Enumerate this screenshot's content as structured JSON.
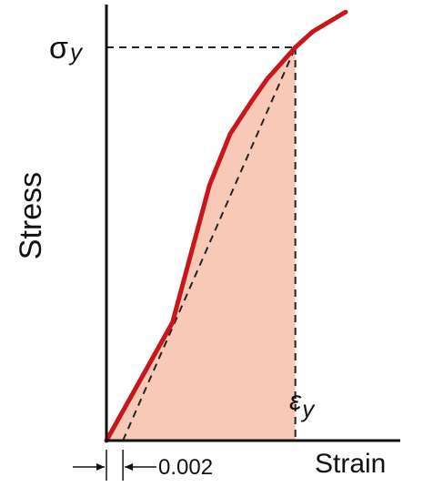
{
  "chart_data": {
    "type": "line",
    "title": "",
    "xlabel": "Strain",
    "ylabel": "Stress",
    "yield_stress_label": "σ",
    "yield_stress_subscript": "y",
    "yield_strain_label": "ε",
    "yield_strain_subscript": "y",
    "offset_label": "0.002",
    "offset_value": 0.002,
    "series": [
      {
        "values": [
          [
            0,
            0
          ],
          [
            0.008,
            0.3
          ],
          [
            0.0125,
            0.65
          ],
          [
            0.015,
            0.78
          ],
          [
            0.0175,
            0.86
          ],
          [
            0.0195,
            0.92
          ],
          [
            0.0229,
            1.0
          ],
          [
            0.025,
            1.04
          ],
          [
            0.029,
            1.09
          ]
        ]
      }
    ],
    "yield_point": [
      0.0229,
      1.0
    ],
    "offset_line": [
      [
        0.002,
        0
      ],
      [
        0.0229,
        1.0
      ]
    ],
    "xlim": [
      0,
      0.029
    ],
    "ylim": [
      0,
      1.09
    ],
    "colors": {
      "curve": "#c8161d",
      "fill": "#f7c9b6",
      "axes": "#111111",
      "dashed": "#222222"
    }
  }
}
